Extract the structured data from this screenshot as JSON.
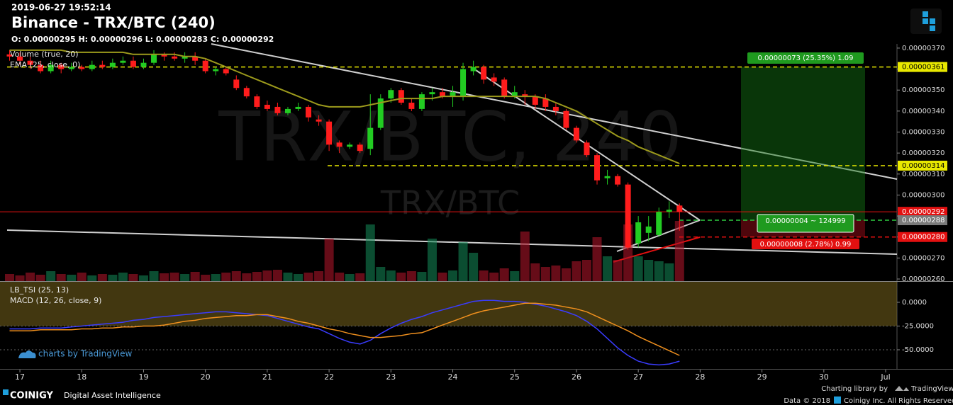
{
  "header": {
    "timestamp": "2019-06-27 19:52:14",
    "title": "Binance - TRX/BTC (240)",
    "ohlc": "O: 0.00000295 H: 0.00000296 L: 0.00000283 C: 0.00000292"
  },
  "chart_data": [
    {
      "type": "candlestick",
      "watermark": "TRX/BTC, 240",
      "watermark_sub": "TRX/BTC",
      "legend": [
        "Volume (true, 20)",
        "EMA (25, close, 0)"
      ],
      "up_color": "#22cc22",
      "down_color": "#ff1c1c",
      "open": [
        3.67e-06,
        3.66e-06,
        3.64e-06,
        3.62e-06,
        3.59e-06,
        3.62e-06,
        3.6e-06,
        3.61e-06,
        3.6e-06,
        3.62e-06,
        3.61e-06,
        3.63e-06,
        3.64e-06,
        3.61e-06,
        3.63e-06,
        3.67e-06,
        3.66e-06,
        3.65e-06,
        3.66e-06,
        3.64e-06,
        3.59e-06,
        3.6e-06,
        3.55e-06,
        3.51e-06,
        3.47e-06,
        3.43e-06,
        3.42e-06,
        3.39e-06,
        3.41e-06,
        3.42e-06,
        3.36e-06,
        3.35e-06,
        3.25e-06,
        3.23e-06,
        3.24e-06,
        3.22e-06,
        3.32e-06,
        3.46e-06,
        3.5e-06,
        3.44e-06,
        3.41e-06,
        3.48e-06,
        3.49e-06,
        3.47e-06,
        3.47e-06,
        3.59e-06,
        3.61e-06,
        3.56e-06,
        3.55e-06,
        3.47e-06,
        3.48e-06,
        3.47e-06,
        3.46e-06,
        3.42e-06,
        3.4e-06,
        3.32e-06,
        3.25e-06,
        3.19e-06,
        3.08e-06,
        3.09e-06,
        3.05e-06,
        2.77e-06,
        2.82e-06,
        2.81e-06,
        2.92e-06,
        2.95e-06
      ],
      "high": [
        3.69e-06,
        3.68e-06,
        3.66e-06,
        3.64e-06,
        3.64e-06,
        3.63e-06,
        3.63e-06,
        3.62e-06,
        3.64e-06,
        3.64e-06,
        3.65e-06,
        3.66e-06,
        3.66e-06,
        3.65e-06,
        3.69e-06,
        3.68e-06,
        3.68e-06,
        3.68e-06,
        3.68e-06,
        3.65e-06,
        3.61e-06,
        3.61e-06,
        3.57e-06,
        3.52e-06,
        3.48e-06,
        3.45e-06,
        3.44e-06,
        3.42e-06,
        3.44e-06,
        3.43e-06,
        3.38e-06,
        3.36e-06,
        3.26e-06,
        3.25e-06,
        3.25e-06,
        3.48e-06,
        3.48e-06,
        3.51e-06,
        3.51e-06,
        3.46e-06,
        3.49e-06,
        3.51e-06,
        3.51e-06,
        3.52e-06,
        3.63e-06,
        3.64e-06,
        3.62e-06,
        3.58e-06,
        3.56e-06,
        3.52e-06,
        3.5e-06,
        3.48e-06,
        3.48e-06,
        3.44e-06,
        3.41e-06,
        3.33e-06,
        3.26e-06,
        3.2e-06,
        3.12e-06,
        3.1e-06,
        3.06e-06,
        2.9e-06,
        2.9e-06,
        2.94e-06,
        2.97e-06,
        2.96e-06
      ],
      "low": [
        3.64e-06,
        3.62e-06,
        3.6e-06,
        3.58e-06,
        3.58e-06,
        3.58e-06,
        3.59e-06,
        3.59e-06,
        3.59e-06,
        3.6e-06,
        3.6e-06,
        3.62e-06,
        3.6e-06,
        3.6e-06,
        3.62e-06,
        3.64e-06,
        3.64e-06,
        3.63e-06,
        3.62e-06,
        3.58e-06,
        3.57e-06,
        3.57e-06,
        3.5e-06,
        3.46e-06,
        3.41e-06,
        3.4e-06,
        3.38e-06,
        3.38e-06,
        3.4e-06,
        3.35e-06,
        3.33e-06,
        3.21e-06,
        3.2e-06,
        3.22e-06,
        3.2e-06,
        3.19e-06,
        3.31e-06,
        3.44e-06,
        3.43e-06,
        3.4e-06,
        3.4e-06,
        3.45e-06,
        3.46e-06,
        3.42e-06,
        3.45e-06,
        3.57e-06,
        3.53e-06,
        3.52e-06,
        3.46e-06,
        3.46e-06,
        3.43e-06,
        3.41e-06,
        3.4e-06,
        3.38e-06,
        3.31e-06,
        3.25e-06,
        3.18e-06,
        3.05e-06,
        3.05e-06,
        3.04e-06,
        2.74e-06,
        2.75e-06,
        2.78e-06,
        2.8e-06,
        2.89e-06,
        2.83e-06
      ],
      "close": [
        3.66e-06,
        3.64e-06,
        3.62e-06,
        3.59e-06,
        3.62e-06,
        3.6e-06,
        3.61e-06,
        3.6e-06,
        3.62e-06,
        3.61e-06,
        3.63e-06,
        3.64e-06,
        3.61e-06,
        3.63e-06,
        3.67e-06,
        3.66e-06,
        3.65e-06,
        3.66e-06,
        3.64e-06,
        3.59e-06,
        3.6e-06,
        3.58e-06,
        3.51e-06,
        3.47e-06,
        3.42e-06,
        3.41e-06,
        3.39e-06,
        3.41e-06,
        3.42e-06,
        3.37e-06,
        3.35e-06,
        3.24e-06,
        3.23e-06,
        3.24e-06,
        3.21e-06,
        3.32e-06,
        3.46e-06,
        3.5e-06,
        3.44e-06,
        3.41e-06,
        3.48e-06,
        3.49e-06,
        3.47e-06,
        3.49e-06,
        3.6e-06,
        3.61e-06,
        3.55e-06,
        3.54e-06,
        3.47e-06,
        3.49e-06,
        3.47e-06,
        3.43e-06,
        3.42e-06,
        3.4e-06,
        3.32e-06,
        3.26e-06,
        3.19e-06,
        3.07e-06,
        3.09e-06,
        3.05e-06,
        2.75e-06,
        2.87e-06,
        2.85e-06,
        2.92e-06,
        2.93e-06,
        2.92e-06
      ],
      "volume": [
        10,
        8,
        12,
        9,
        14,
        10,
        9,
        12,
        8,
        10,
        9,
        12,
        10,
        8,
        14,
        11,
        12,
        10,
        13,
        9,
        10,
        12,
        14,
        11,
        13,
        15,
        16,
        12,
        10,
        12,
        14,
        60,
        12,
        10,
        11,
        80,
        20,
        15,
        12,
        14,
        13,
        60,
        12,
        15,
        55,
        40,
        15,
        12,
        18,
        14,
        70,
        25,
        20,
        22,
        18,
        28,
        30,
        62,
        35,
        30,
        80,
        35,
        30,
        28,
        25,
        85
      ],
      "ema": {
        "color": "#9c9a1c",
        "values": [
          3.69e-06,
          3.69e-06,
          3.69e-06,
          3.69e-06,
          3.69e-06,
          3.69e-06,
          3.68e-06,
          3.68e-06,
          3.68e-06,
          3.68e-06,
          3.68e-06,
          3.68e-06,
          3.67e-06,
          3.67e-06,
          3.67e-06,
          3.67e-06,
          3.67e-06,
          3.66e-06,
          3.66e-06,
          3.65e-06,
          3.63e-06,
          3.61e-06,
          3.59e-06,
          3.57e-06,
          3.55e-06,
          3.53e-06,
          3.51e-06,
          3.49e-06,
          3.47e-06,
          3.45e-06,
          3.43e-06,
          3.42e-06,
          3.42e-06,
          3.42e-06,
          3.42e-06,
          3.43e-06,
          3.44e-06,
          3.45e-06,
          3.46e-06,
          3.46e-06,
          3.46e-06,
          3.46e-06,
          3.47e-06,
          3.47e-06,
          3.47e-06,
          3.47e-06,
          3.47e-06,
          3.47e-06,
          3.47e-06,
          3.47e-06,
          3.47e-06,
          3.47e-06,
          3.46e-06,
          3.44e-06,
          3.42e-06,
          3.4e-06,
          3.37e-06,
          3.34e-06,
          3.31e-06,
          3.28e-06,
          3.26e-06,
          3.23e-06,
          3.21e-06,
          3.19e-06,
          3.17e-06,
          3.15e-06
        ]
      },
      "ylim": [
        2.59e-06,
        3.72e-06
      ],
      "yticks": [
        {
          "value": 3.7e-06,
          "label": "0.00000370"
        },
        {
          "value": 3.6e-06,
          "label": "0.00000360"
        },
        {
          "value": 3.5e-06,
          "label": "0.00000350"
        },
        {
          "value": 3.4e-06,
          "label": "0.00000340"
        },
        {
          "value": 3.3e-06,
          "label": "0.00000330"
        },
        {
          "value": 3.2e-06,
          "label": "0.00000320"
        },
        {
          "value": 3.1e-06,
          "label": "0.00000310"
        },
        {
          "value": 3e-06,
          "label": "0.00000300"
        },
        {
          "value": 2.9e-06,
          "label": "0.00000290"
        },
        {
          "value": 2.8e-06,
          "label": "0.00000280"
        },
        {
          "value": 2.7e-06,
          "label": "0.00000270"
        },
        {
          "value": 2.6e-06,
          "label": "0.00000260"
        }
      ],
      "xlim": [
        -0.93,
        86.1
      ],
      "xticks": [
        {
          "value": 1,
          "label": "17"
        },
        {
          "value": 7,
          "label": "18"
        },
        {
          "value": 13,
          "label": "19"
        },
        {
          "value": 19,
          "label": "20"
        },
        {
          "value": 25,
          "label": "21"
        },
        {
          "value": 31,
          "label": "22"
        },
        {
          "value": 37,
          "label": "23"
        },
        {
          "value": 43,
          "label": "24"
        },
        {
          "value": 49,
          "label": "25"
        },
        {
          "value": 55,
          "label": "26"
        },
        {
          "value": 61,
          "label": "27"
        },
        {
          "value": 67,
          "label": "28"
        },
        {
          "value": 73,
          "label": "29"
        },
        {
          "value": 79,
          "label": "30"
        },
        {
          "value": 85,
          "label": "Jul"
        }
      ],
      "levels": [
        {
          "value": 3.61e-06,
          "label": "0.00000361",
          "color": "#e8e800",
          "style": "dashed"
        },
        {
          "value": 3.14e-06,
          "label": "0.00000314",
          "color": "#e8e800",
          "style": "dashed"
        },
        {
          "value": 2.92e-06,
          "label": "0.00000292",
          "color": "#e31010",
          "style": "solid"
        },
        {
          "value": 2.88e-06,
          "label": "0.00000288",
          "color": "#7a7a7a",
          "style": "dashed"
        },
        {
          "value": 2.8e-06,
          "label": "0.00000280",
          "color": "#e31010",
          "style": "dashed"
        }
      ],
      "position_labels": [
        "0.00000073 (25.35%) 1.09",
        "0.00000004 ~ 124999",
        "0.00000008 (2.78%) 0.99"
      ]
    },
    {
      "type": "line",
      "legend": [
        "LB_TSI (25, 13)",
        "MACD (12, 26, close, 9)"
      ],
      "series": [
        {
          "color": "#3a3cff",
          "values": [
            -28,
            -28,
            -28,
            -27,
            -27,
            -27,
            -26,
            -25,
            -24,
            -23,
            -22,
            -21,
            -19,
            -18,
            -16,
            -15,
            -14,
            -13,
            -12,
            -11,
            -10,
            -10,
            -11,
            -12,
            -13,
            -14,
            -17,
            -20,
            -23,
            -26,
            -28,
            -33,
            -38,
            -42,
            -44,
            -40,
            -33,
            -27,
            -22,
            -18,
            -15,
            -11,
            -8,
            -5,
            -2,
            1,
            2,
            2,
            1,
            1,
            0,
            -2,
            -4,
            -7,
            -10,
            -14,
            -20,
            -28,
            -38,
            -48,
            -56,
            -62,
            -65,
            -66,
            -65,
            -62
          ]
        },
        {
          "color": "#f0901e",
          "values": [
            -30,
            -30,
            -30,
            -29,
            -29,
            -29,
            -29,
            -28,
            -28,
            -27,
            -27,
            -26,
            -26,
            -25,
            -25,
            -24,
            -22,
            -20,
            -19,
            -17,
            -16,
            -15,
            -14,
            -14,
            -13,
            -13,
            -15,
            -17,
            -20,
            -22,
            -25,
            -28,
            -30,
            -33,
            -35,
            -37,
            -37,
            -36,
            -35,
            -33,
            -32,
            -28,
            -24,
            -20,
            -16,
            -12,
            -9,
            -7,
            -5,
            -3,
            -1,
            -1,
            -2,
            -3,
            -5,
            -7,
            -10,
            -15,
            -20,
            -25,
            -30,
            -36,
            -41,
            -46,
            -51,
            -56
          ]
        }
      ],
      "ylim": [
        -69.4,
        21.6
      ],
      "yticks": [
        {
          "value": 0,
          "label": "0.0000"
        },
        {
          "value": -25,
          "label": "-25.0000"
        },
        {
          "value": -50,
          "label": "-50.0000"
        }
      ],
      "attribution": "charts by TradingView"
    }
  ],
  "footer": {
    "brand": "COINIGY",
    "tagline": "Digital Asset Intelligence",
    "library": "Charting library by",
    "library_name": "TradingView",
    "data": "Data © 2018",
    "rights": "Coinigy Inc. All Rights Reserved."
  }
}
